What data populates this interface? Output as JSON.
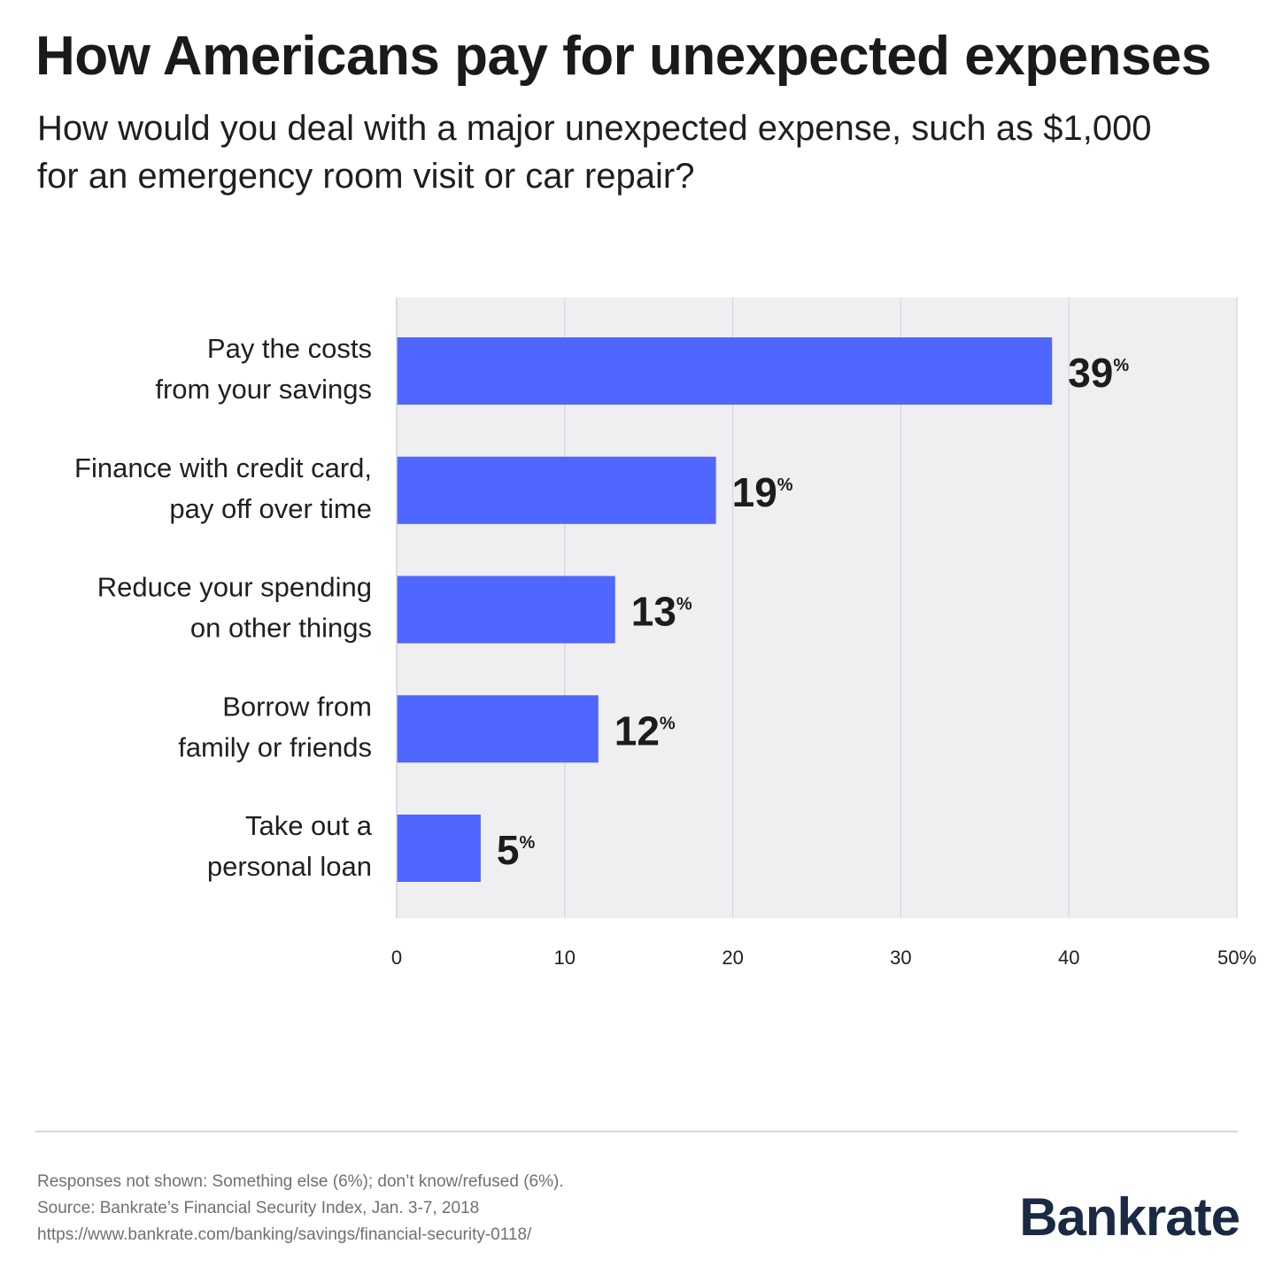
{
  "header": {
    "title": "How Americans pay for unexpected expenses",
    "subtitle": "How would you deal with a major unexpected expense, such as $1,000 for an emergency room visit or car repair?"
  },
  "colors": {
    "bar": "#4f66ff",
    "plot_background": "#efeff2",
    "gridline": "#d4d4dc"
  },
  "chart_data": {
    "type": "bar",
    "orientation": "horizontal",
    "categories": [
      [
        "Pay the costs",
        "from your savings"
      ],
      [
        "Finance with credit card,",
        "pay off over time"
      ],
      [
        "Reduce your spending",
        "on other things"
      ],
      [
        "Borrow from",
        "family or friends"
      ],
      [
        "Take out a",
        "personal loan"
      ]
    ],
    "values": [
      39,
      19,
      13,
      12,
      5
    ],
    "value_suffix": "%",
    "xlim": [
      0,
      50
    ],
    "xticks": [
      0,
      10,
      20,
      30,
      40,
      50
    ],
    "xtick_labels": [
      "0",
      "10",
      "20",
      "30",
      "40",
      "50%"
    ],
    "grid": true,
    "title": "How Americans pay for unexpected expenses",
    "xlabel": "",
    "ylabel": ""
  },
  "footer": {
    "notes": [
      "Responses not shown: Something else (6%); don’t know/refused (6%).",
      "Source: Bankrate’s Financial Security Index, Jan. 3-7, 2018",
      "https://www.bankrate.com/banking/savings/financial-security-0118/"
    ],
    "brand": "Bankrate"
  }
}
